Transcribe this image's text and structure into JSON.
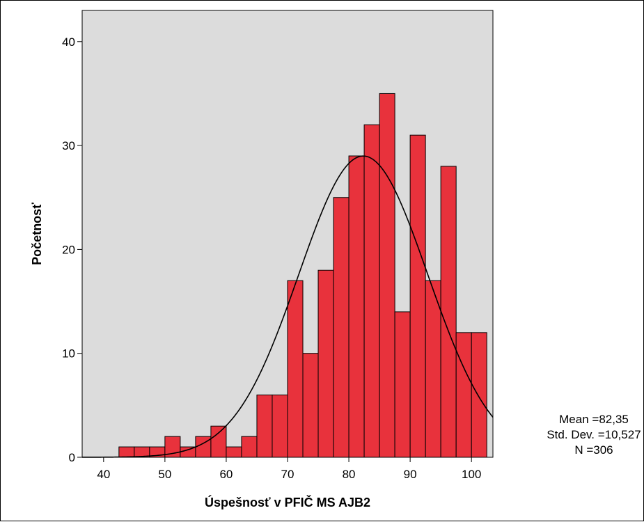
{
  "chart_data": {
    "type": "bar",
    "subtype": "histogram",
    "title": "",
    "xlabel": "Úspešnosť v PFIČ MS AJB2",
    "ylabel": "Početnosť",
    "xlim": [
      36.5,
      103.5
    ],
    "ylim": [
      0,
      43
    ],
    "xticks": [
      40,
      50,
      60,
      70,
      80,
      90,
      100
    ],
    "yticks": [
      0,
      10,
      20,
      30,
      40
    ],
    "bin_width": 2.5,
    "bins": [
      {
        "start": 42.5,
        "end": 45.0,
        "count": 1
      },
      {
        "start": 45.0,
        "end": 47.5,
        "count": 1
      },
      {
        "start": 47.5,
        "end": 50.0,
        "count": 1
      },
      {
        "start": 50.0,
        "end": 52.5,
        "count": 2
      },
      {
        "start": 52.5,
        "end": 55.0,
        "count": 1
      },
      {
        "start": 55.0,
        "end": 57.5,
        "count": 2
      },
      {
        "start": 57.5,
        "end": 60.0,
        "count": 3
      },
      {
        "start": 60.0,
        "end": 62.5,
        "count": 1
      },
      {
        "start": 62.5,
        "end": 65.0,
        "count": 2
      },
      {
        "start": 65.0,
        "end": 67.5,
        "count": 6
      },
      {
        "start": 67.5,
        "end": 70.0,
        "count": 6
      },
      {
        "start": 70.0,
        "end": 72.5,
        "count": 17
      },
      {
        "start": 72.5,
        "end": 75.0,
        "count": 10
      },
      {
        "start": 75.0,
        "end": 77.5,
        "count": 18
      },
      {
        "start": 77.5,
        "end": 80.0,
        "count": 25
      },
      {
        "start": 80.0,
        "end": 82.5,
        "count": 29
      },
      {
        "start": 82.5,
        "end": 85.0,
        "count": 32
      },
      {
        "start": 85.0,
        "end": 87.5,
        "count": 35
      },
      {
        "start": 87.5,
        "end": 90.0,
        "count": 14
      },
      {
        "start": 90.0,
        "end": 92.5,
        "count": 31
      },
      {
        "start": 92.5,
        "end": 95.0,
        "count": 17
      },
      {
        "start": 95.0,
        "end": 97.5,
        "count": 28
      },
      {
        "start": 97.5,
        "end": 100.0,
        "count": 12
      },
      {
        "start": 100.0,
        "end": 102.5,
        "count": 12
      }
    ],
    "normal_curve": {
      "mean": 82.35,
      "std": 10.527,
      "n": 306
    },
    "stats_text": [
      "Mean =82,35",
      "Std. Dev. =10,527",
      "N =306"
    ],
    "grid": false,
    "colors": {
      "bar_fill": "#e8323c",
      "bar_edge": "#000000",
      "plot_bg": "#dcdcdc",
      "curve": "#000000"
    }
  }
}
